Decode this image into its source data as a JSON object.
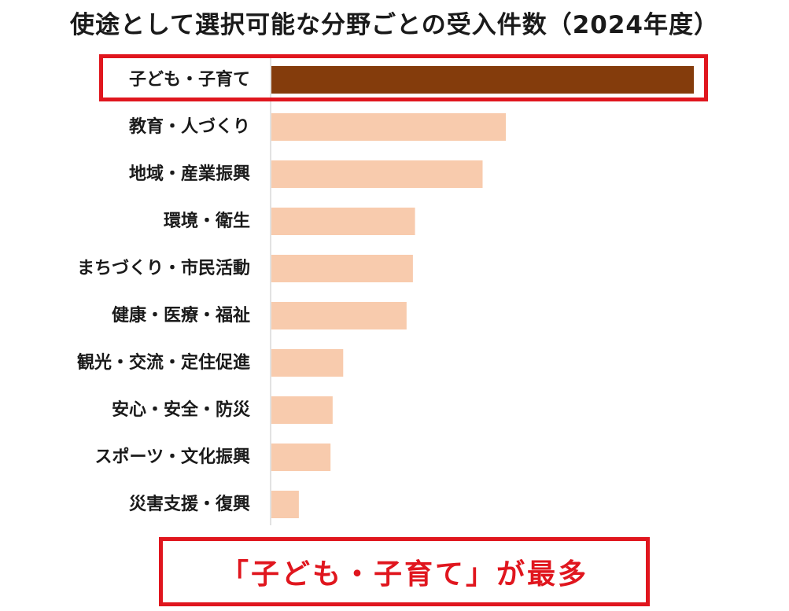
{
  "title": "使途として選択可能な分野ごとの受入件数（2024年度）",
  "chart_data": {
    "type": "bar",
    "orientation": "horizontal",
    "title": "使途として選択可能な分野ごとの受入件数（2024年度）",
    "categories": [
      "子ども・子育て",
      "教育・人づくり",
      "地域・産業振興",
      "環境・衛生",
      "まちづくり・市民活動",
      "健康・医療・福祉",
      "観光・交流・定住促進",
      "安心・安全・防災",
      "スポーツ・文化振興",
      "災害支援・復興"
    ],
    "values": [
      100,
      55.5,
      50,
      34,
      33.5,
      32,
      17,
      14.5,
      14,
      6.5
    ],
    "value_units": "relative (largest = 100); no axis or data labels shown",
    "highlight_index": 0,
    "colors": {
      "highlight": "#843c0c",
      "default": "#f8cbad",
      "axis": "#d9d9d9"
    },
    "grid": false,
    "legend": "none"
  },
  "callout": {
    "text": "「子ども・子育て」が最多",
    "color": "#e0161e"
  }
}
